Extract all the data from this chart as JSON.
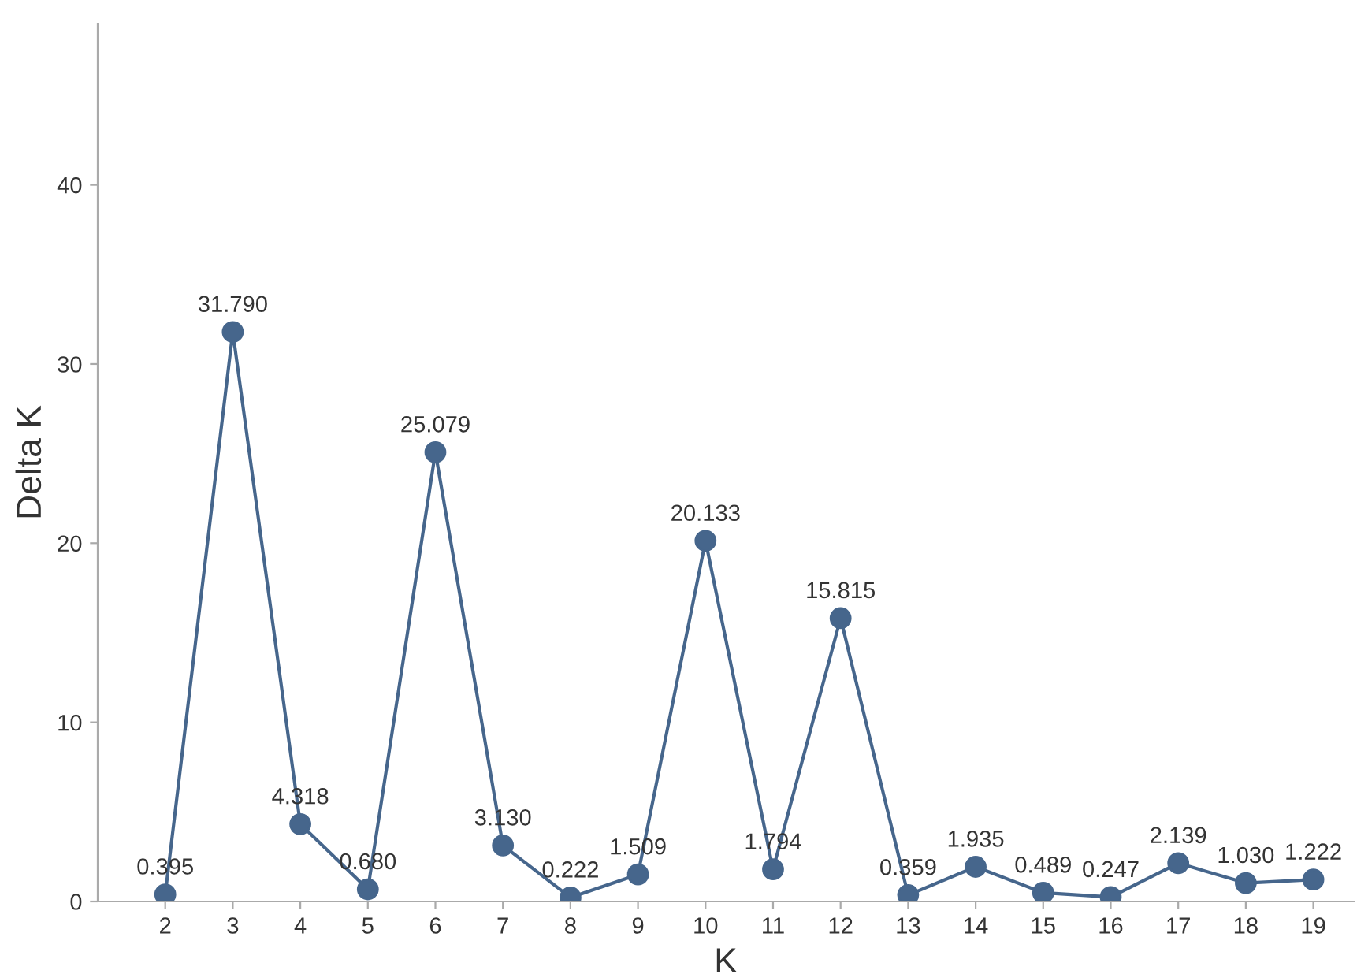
{
  "chart_data": {
    "type": "line",
    "xlabel": "K",
    "ylabel": "Delta K",
    "categories": [
      "2",
      "3",
      "4",
      "5",
      "6",
      "7",
      "8",
      "9",
      "10",
      "11",
      "12",
      "13",
      "14",
      "15",
      "16",
      "17",
      "18",
      "19"
    ],
    "series": [
      {
        "color": "#46668c",
        "values": [
          0.395,
          31.79,
          4.318,
          0.68,
          25.079,
          3.13,
          0.222,
          1.509,
          20.133,
          1.794,
          15.815,
          0.359,
          1.935,
          0.489,
          0.247,
          2.139,
          1.03,
          1.222
        ]
      }
    ],
    "ylim": [
      0,
      49
    ],
    "yticks": [
      0,
      10,
      20,
      30,
      40
    ],
    "grid": false,
    "legend": false,
    "marker": "circle",
    "line_style": "solid",
    "value_labels": [
      "0.395",
      "31.790",
      "4.318",
      "0.680",
      "25.079",
      "3.130",
      "0.222",
      "1.509",
      "20.133",
      "1.794",
      "15.815",
      "0.359",
      "1.935",
      "0.489",
      "0.247",
      "2.139",
      "1.030",
      "1.222"
    ]
  }
}
